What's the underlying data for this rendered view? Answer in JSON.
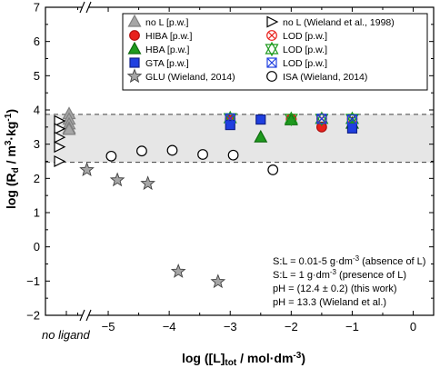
{
  "chart_data": {
    "type": "scatter",
    "xlabel": "log ([L]tot / mol·dm-3)",
    "ylabel": "log (Rd / m3·kg-1)",
    "xlim": [
      -6,
      0
    ],
    "ylim": [
      -2,
      7
    ],
    "x_ticks": [
      -5,
      -4,
      -3,
      -2,
      -1,
      0
    ],
    "y_ticks": [
      -2,
      -1,
      0,
      1,
      2,
      3,
      4,
      5,
      6,
      7
    ],
    "no_ligand_label": "no ligand",
    "shaded_band": {
      "y_low": 2.47,
      "y_high": 3.87
    },
    "series": [
      {
        "name": "no L [p.w.]",
        "marker": "triangle-up",
        "fill": "#a6a6a6",
        "stroke": "#808080",
        "x_no_ligand": true,
        "y": [
          3.88,
          3.72,
          3.58,
          3.46,
          3.42
        ]
      },
      {
        "name": "no L (Wieland et al., 1998)",
        "marker": "triangle-right",
        "fill": "#ffffff",
        "stroke": "#000000",
        "x_no_ligand": true,
        "y": [
          3.68,
          3.45,
          3.2,
          2.92,
          2.5
        ]
      },
      {
        "name": "HIBA [p.w.]",
        "marker": "circle",
        "fill": "#e8211c",
        "stroke": "#b01010",
        "points": [
          [
            -3,
            3.7
          ],
          [
            -2,
            3.72
          ],
          [
            -1.5,
            3.5
          ]
        ]
      },
      {
        "name": "LOD [p.w.]",
        "marker": "circle-x",
        "fill": "none",
        "stroke": "#e8211c",
        "points": [
          [
            -3,
            3.75
          ],
          [
            -2,
            3.74
          ],
          [
            -1.5,
            3.75
          ],
          [
            -1,
            3.74
          ]
        ]
      },
      {
        "name": "HBA [p.w.]",
        "marker": "triangle-up",
        "fill": "#1e9a1e",
        "stroke": "#0f6a0f",
        "points": [
          [
            -2.5,
            3.2
          ],
          [
            -2,
            3.7
          ],
          [
            -1,
            3.6
          ]
        ]
      },
      {
        "name": "LOD [p.w.]",
        "marker": "triangle-x",
        "fill": "none",
        "stroke": "#1e9a1e",
        "points": [
          [
            -3,
            3.76
          ],
          [
            -2,
            3.74
          ],
          [
            -1.5,
            3.74
          ],
          [
            -1,
            3.74
          ]
        ]
      },
      {
        "name": "GTA [p.w.]",
        "marker": "square",
        "fill": "#1f3fe0",
        "stroke": "#10208a",
        "points": [
          [
            -3,
            3.56
          ],
          [
            -2.5,
            3.72
          ],
          [
            -1,
            3.46
          ]
        ]
      },
      {
        "name": "LOD [p.w.]",
        "marker": "square-x",
        "fill": "none",
        "stroke": "#1f3fe0",
        "points": [
          [
            -3,
            3.75
          ],
          [
            -1.5,
            3.74
          ],
          [
            -1,
            3.72
          ]
        ]
      },
      {
        "name": "GLU (Wieland, 2014)",
        "marker": "star",
        "fill": "#a6a6a6",
        "stroke": "#404040",
        "points": [
          [
            -5.35,
            2.25
          ],
          [
            -4.85,
            1.95
          ],
          [
            -4.35,
            1.85
          ],
          [
            -3.85,
            -0.72
          ],
          [
            -3.2,
            -1.02
          ]
        ]
      },
      {
        "name": "ISA (Wieland, 2014)",
        "marker": "circle-open",
        "fill": "#ffffff",
        "stroke": "#000000",
        "points": [
          [
            -4.95,
            2.65
          ],
          [
            -4.45,
            2.8
          ],
          [
            -3.95,
            2.82
          ],
          [
            -3.45,
            2.7
          ],
          [
            -2.95,
            2.68
          ],
          [
            -2.3,
            2.25
          ]
        ]
      }
    ],
    "annotations": [
      "S:L = 0.01-5 g·dm-3 (absence of L)",
      "S:L = 1 g·dm-3 (presence of L)",
      "pH = (12.4 ± 0.2) (this work)",
      "pH = 13.3 (Wieland et al.)"
    ]
  }
}
